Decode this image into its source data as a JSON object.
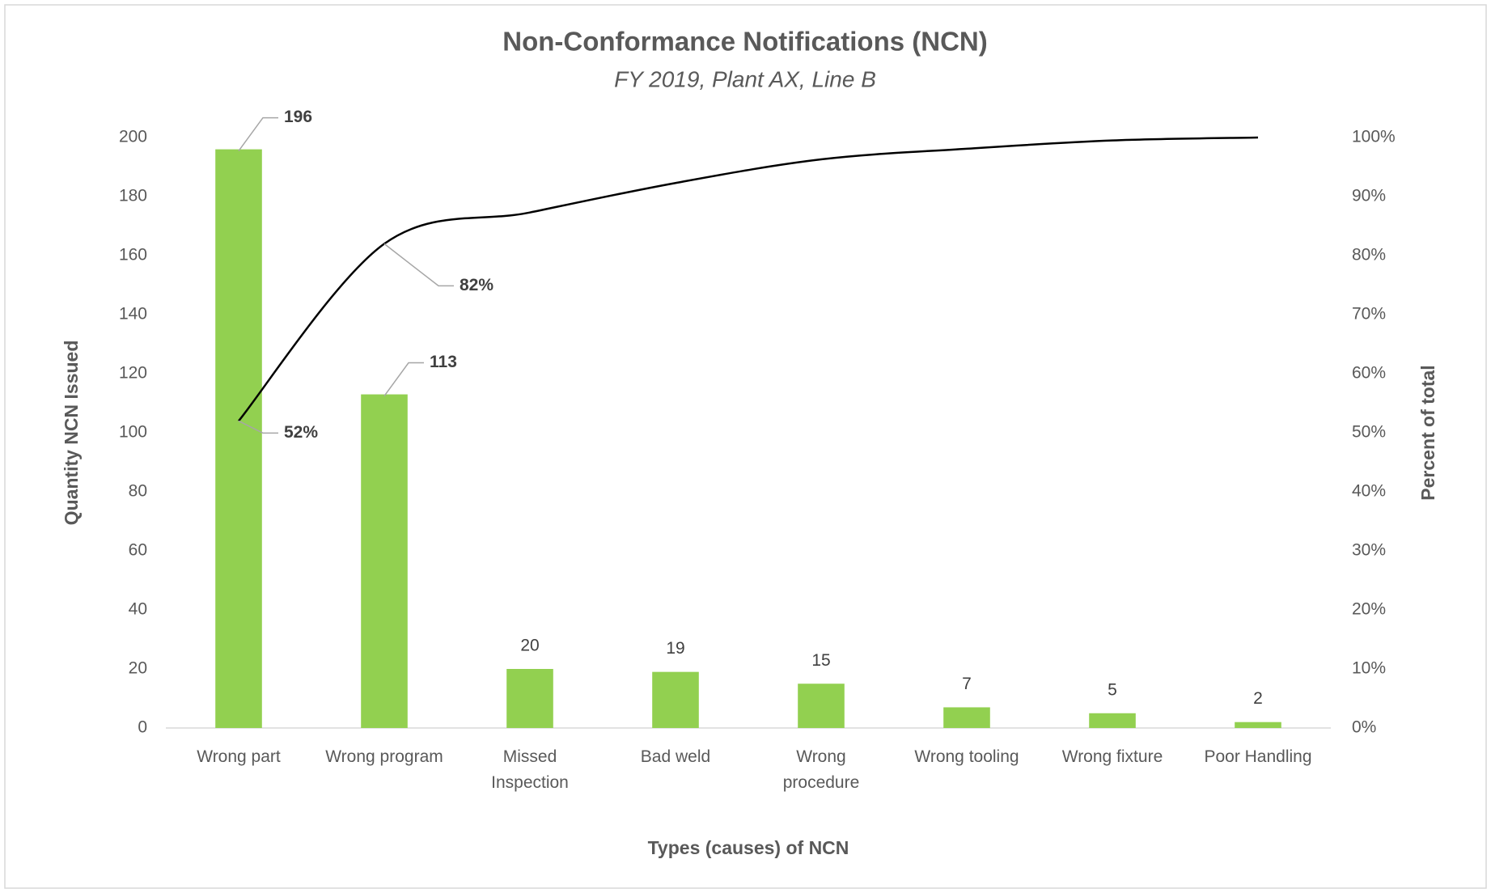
{
  "chart_data": {
    "type": "pareto",
    "title": "Non-Conformance Notifications (NCN)",
    "subtitle": "FY 2019, Plant AX, Line B",
    "x_label": "Types (causes) of NCN",
    "y_label": "Quantity NCN Issued",
    "y2_label": "Percent of total",
    "categories": [
      "Wrong part",
      "Wrong program",
      "Missed Inspection",
      "Bad weld",
      "Wrong procedure",
      "Wrong tooling",
      "Wrong fixture",
      "Poor Handling"
    ],
    "series": [
      {
        "type": "bar",
        "color": "#92d050",
        "values": [
          196,
          113,
          20,
          19,
          15,
          7,
          5,
          2
        ]
      },
      {
        "type": "line",
        "axis": "y2",
        "color": "#000000",
        "values": [
          52,
          82,
          87.3,
          92.3,
          96.3,
          98.1,
          99.5,
          100
        ],
        "value_labels": [
          "52%",
          "82%",
          null,
          null,
          null,
          null,
          null,
          null
        ]
      }
    ],
    "ylim": [
      0,
      200
    ],
    "yticks": [
      0,
      20,
      40,
      60,
      80,
      100,
      120,
      140,
      160,
      180,
      200
    ],
    "y2lim": [
      0,
      100
    ],
    "y2ticks": [
      {
        "value": 0,
        "label": "0%"
      },
      {
        "value": 10,
        "label": "10%"
      },
      {
        "value": 20,
        "label": "20%"
      },
      {
        "value": 30,
        "label": "30%"
      },
      {
        "value": 40,
        "label": "40%"
      },
      {
        "value": 50,
        "label": "50%"
      },
      {
        "value": 60,
        "label": "60%"
      },
      {
        "value": 70,
        "label": "70%"
      },
      {
        "value": 80,
        "label": "80%"
      },
      {
        "value": 90,
        "label": "90%"
      },
      {
        "value": 100,
        "label": "100%"
      }
    ],
    "grid": false
  }
}
